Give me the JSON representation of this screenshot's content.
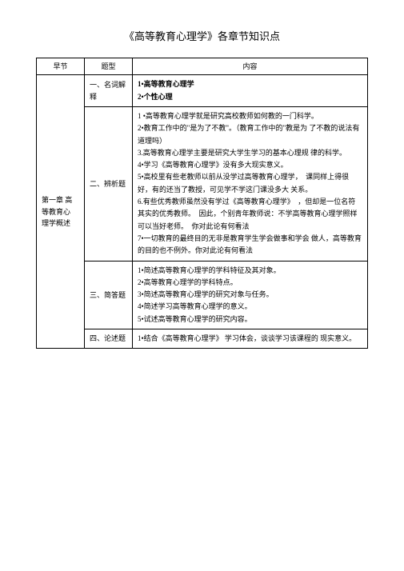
{
  "title": "《高等教育心理学》各章节知识点",
  "headers": {
    "chapter": "早节",
    "type": "题型",
    "content": "内容"
  },
  "chapter_name": "第一章 高等教育心 理学概述",
  "rows": [
    {
      "type": "一、名词解释",
      "content": [
        "1•高等教育心理学",
        "2•个性心理"
      ]
    },
    {
      "type": "二、辨析题",
      "content": [
        "1 •高等教育心理学就是研究高校教师如何教的一门科学。",
        "2•教育工作中的\"是为了不教\"。（教育工作中的\"教是为 了不教的说法有道理吗）",
        "3.高等教育心理学主要是研究大学生学习的基本心理规 律的科学。",
        "4•学习《高等教育心理学》没有多大现实意义。",
        "5•高校里有些老教师以前从没学过高等教育心理学，　课同样上得很好，有的还当了教授，可见学不学这门课没多大 关系。",
        "6.有些优秀教师虽然没有学过《高等教育心理学》　，但却是一位名符其实的优秀教师。　因此，个别青年教师说：不学高等教育心理学照样可以当好老师。　你对此论有何看法",
        "7•一切教育的最终目的无非是教育学生学会做事和学会 做人，高等教育的目的也不例外。你对此论有何看法"
      ]
    },
    {
      "type": "三、简答题",
      "content": [
        "1•简述高等教育心理学的学科特征及其对象。",
        "2•高等教育心理学的学科特点。",
        "3•简述高等教育心理学的研究对象与任务。",
        "4•简述学习高等教育心理学的意义。",
        "5•试述高等教育心理学的研究内容。"
      ]
    },
    {
      "type": "四、论述题",
      "content": [
        "1•结合《高等教育心理学》 学习体会，谈谈学习该课程的 现实意义。"
      ]
    }
  ]
}
